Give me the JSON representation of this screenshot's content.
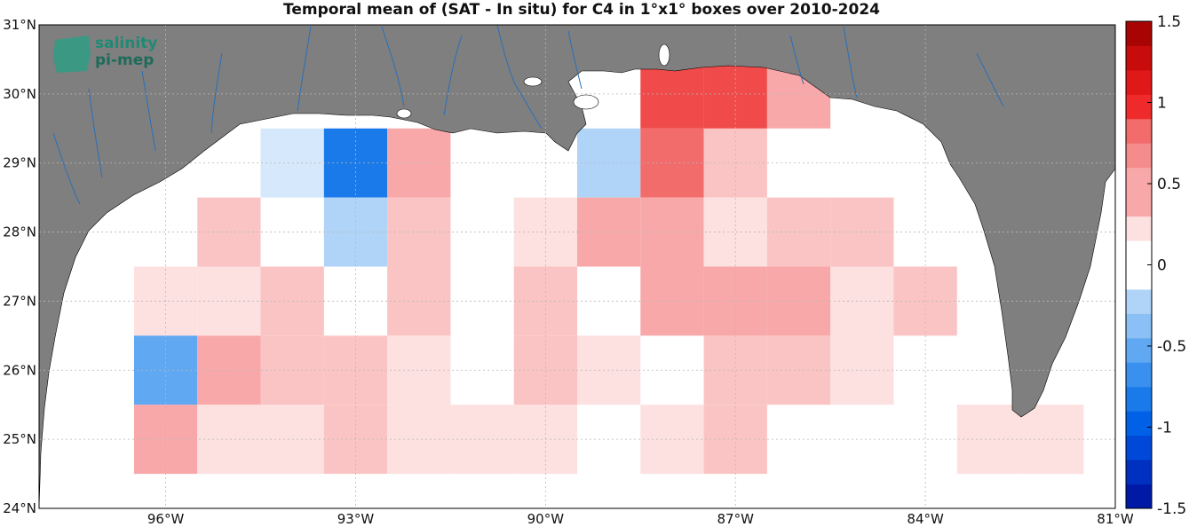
{
  "title": "Temporal mean of (SAT - In situ) for C4 in 1°x1° boxes over 2010-2024",
  "logo": {
    "line1": "salinity",
    "line2": "pi-mep"
  },
  "axes": {
    "lon_ticks": [
      "96°W",
      "93°W",
      "90°W",
      "87°W",
      "84°W",
      "81°W"
    ],
    "lat_ticks": [
      "24°N",
      "25°N",
      "26°N",
      "27°N",
      "28°N",
      "29°N",
      "30°N",
      "31°N"
    ]
  },
  "colorbar": {
    "ticks": [
      "1.5",
      "1",
      "0.5",
      "0",
      "-0.5",
      "-1",
      "-1.5"
    ],
    "range": [
      -1.5,
      1.5
    ]
  },
  "colors": {
    "land": "#7f7f7f",
    "ocean": "#ffffff",
    "rivers": "#2a6fb8",
    "grid": "#b0b0b0"
  },
  "chart_data": {
    "type": "heatmap",
    "lon_range": [
      -98,
      -81
    ],
    "lat_range": [
      24,
      31
    ],
    "cell_size_deg": 1,
    "cells": [
      {
        "lon": -94,
        "lat": 29,
        "v": -0.1
      },
      {
        "lon": -93,
        "lat": 29,
        "v": -0.9
      },
      {
        "lon": -92,
        "lat": 29,
        "v": 0.4
      },
      {
        "lon": -89,
        "lat": 29,
        "v": -0.35
      },
      {
        "lon": -88,
        "lat": 29,
        "v": 0.75
      },
      {
        "lon": -87,
        "lat": 29,
        "v": 0.25
      },
      {
        "lon": -88,
        "lat": 30,
        "v": 0.85
      },
      {
        "lon": -87,
        "lat": 30,
        "v": 0.85
      },
      {
        "lon": -86,
        "lat": 30,
        "v": 0.5
      },
      {
        "lon": -95,
        "lat": 28,
        "v": 0.25
      },
      {
        "lon": -93,
        "lat": 28,
        "v": -0.25
      },
      {
        "lon": -92,
        "lat": 28,
        "v": 0.3
      },
      {
        "lon": -90,
        "lat": 28,
        "v": 0.15
      },
      {
        "lon": -89,
        "lat": 28,
        "v": 0.4
      },
      {
        "lon": -88,
        "lat": 28,
        "v": 0.4
      },
      {
        "lon": -87,
        "lat": 28,
        "v": 0.1
      },
      {
        "lon": -86,
        "lat": 28,
        "v": 0.3
      },
      {
        "lon": -85,
        "lat": 28,
        "v": 0.3
      },
      {
        "lon": -96,
        "lat": 27,
        "v": 0.15
      },
      {
        "lon": -95,
        "lat": 27,
        "v": 0.15
      },
      {
        "lon": -94,
        "lat": 27,
        "v": 0.3
      },
      {
        "lon": -92,
        "lat": 27,
        "v": 0.3
      },
      {
        "lon": -90,
        "lat": 27,
        "v": 0.3
      },
      {
        "lon": -88,
        "lat": 27,
        "v": 0.4
      },
      {
        "lon": -87,
        "lat": 27,
        "v": 0.4
      },
      {
        "lon": -86,
        "lat": 27,
        "v": 0.4
      },
      {
        "lon": -85,
        "lat": 27,
        "v": 0.15
      },
      {
        "lon": -84,
        "lat": 27,
        "v": 0.3
      },
      {
        "lon": -96,
        "lat": 26,
        "v": -0.6
      },
      {
        "lon": -95,
        "lat": 26,
        "v": 0.45
      },
      {
        "lon": -94,
        "lat": 26,
        "v": 0.3
      },
      {
        "lon": -93,
        "lat": 26,
        "v": 0.3
      },
      {
        "lon": -92,
        "lat": 26,
        "v": 0.15
      },
      {
        "lon": -90,
        "lat": 26,
        "v": 0.3
      },
      {
        "lon": -89,
        "lat": 26,
        "v": 0.15
      },
      {
        "lon": -87,
        "lat": 26,
        "v": 0.3
      },
      {
        "lon": -86,
        "lat": 26,
        "v": 0.3
      },
      {
        "lon": -85,
        "lat": 26,
        "v": 0.15
      },
      {
        "lon": -96,
        "lat": 25,
        "v": 0.45
      },
      {
        "lon": -95,
        "lat": 25,
        "v": 0.15
      },
      {
        "lon": -94,
        "lat": 25,
        "v": 0.15
      },
      {
        "lon": -93,
        "lat": 25,
        "v": 0.3
      },
      {
        "lon": -92,
        "lat": 25,
        "v": 0.15
      },
      {
        "lon": -91,
        "lat": 25,
        "v": 0.15
      },
      {
        "lon": -90,
        "lat": 25,
        "v": 0.15
      },
      {
        "lon": -88,
        "lat": 25,
        "v": 0.15
      },
      {
        "lon": -87,
        "lat": 25,
        "v": 0.3
      },
      {
        "lon": -83,
        "lat": 25,
        "v": 0.15
      },
      {
        "lon": -82,
        "lat": 25,
        "v": 0.15
      }
    ]
  }
}
